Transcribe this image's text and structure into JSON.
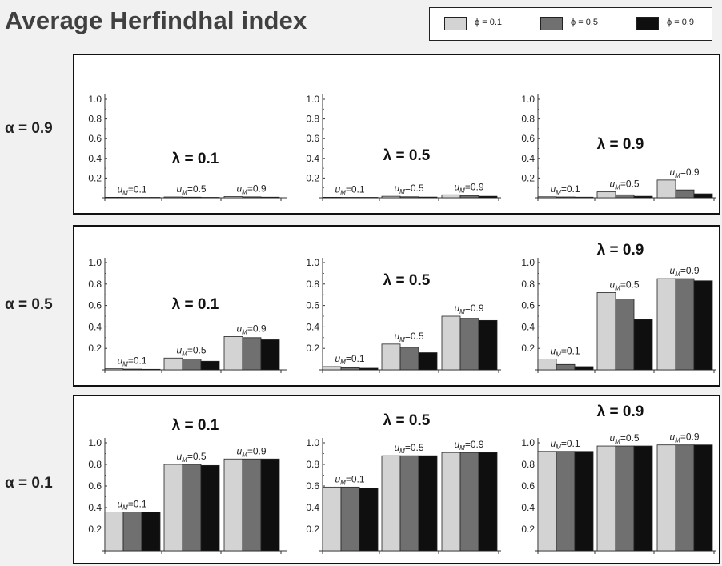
{
  "title": "Average Herfindhal index",
  "legend": [
    {
      "label": "ϕ = 0.1",
      "color": "#d3d3d3"
    },
    {
      "label": "ϕ = 0.5",
      "color": "#707070"
    },
    {
      "label": "ϕ = 0.9",
      "color": "#0f0f0f"
    }
  ],
  "colors": {
    "phi_0_1": "#d3d3d3",
    "phi_0_5": "#707070",
    "phi_0_9": "#0f0f0f",
    "background": "#f1f1f1",
    "panel": "#ffffff"
  },
  "chart_data": {
    "type": "bar",
    "title": "Average Herfindhal index",
    "series_names": [
      "ϕ = 0.1",
      "ϕ = 0.5",
      "ϕ = 0.9"
    ],
    "categories": [
      "u_M=0.1",
      "u_M=0.5",
      "u_M=0.9"
    ],
    "category_labels": [
      {
        "base": "u",
        "sub": "M",
        "value": "=0.1"
      },
      {
        "base": "u",
        "sub": "M",
        "value": "=0.5"
      },
      {
        "base": "u",
        "sub": "M",
        "value": "=0.9"
      }
    ],
    "yticks": [
      "0.2",
      "0.4",
      "0.6",
      "0.8",
      "1.0"
    ],
    "ylim": [
      0,
      1.0
    ],
    "grid": false,
    "legend_position": "top-right",
    "rows": [
      {
        "label": "α = 0.9",
        "panels": [
          {
            "label": "λ = 0.1",
            "values": [
              [
                0.005,
                0.003,
                0.002
              ],
              [
                0.008,
                0.006,
                0.004
              ],
              [
                0.012,
                0.009,
                0.006
              ]
            ]
          },
          {
            "label": "λ = 0.5",
            "values": [
              [
                0.005,
                0.004,
                0.003
              ],
              [
                0.015,
                0.01,
                0.007
              ],
              [
                0.03,
                0.02,
                0.015
              ]
            ]
          },
          {
            "label": "λ = 0.9",
            "values": [
              [
                0.01,
                0.008,
                0.006
              ],
              [
                0.06,
                0.03,
                0.015
              ],
              [
                0.18,
                0.08,
                0.04
              ]
            ]
          }
        ]
      },
      {
        "label": "α = 0.5",
        "panels": [
          {
            "label": "λ = 0.1",
            "values": [
              [
                0.01,
                0.007,
                0.005
              ],
              [
                0.11,
                0.1,
                0.08
              ],
              [
                0.31,
                0.3,
                0.28
              ]
            ]
          },
          {
            "label": "λ = 0.5",
            "values": [
              [
                0.03,
                0.02,
                0.015
              ],
              [
                0.24,
                0.21,
                0.16
              ],
              [
                0.5,
                0.48,
                0.46
              ]
            ]
          },
          {
            "label": "λ = 0.9",
            "values": [
              [
                0.1,
                0.05,
                0.03
              ],
              [
                0.72,
                0.66,
                0.47
              ],
              [
                0.85,
                0.85,
                0.83
              ]
            ]
          }
        ]
      },
      {
        "label": "α = 0.1",
        "panels": [
          {
            "label": "λ = 0.1",
            "values": [
              [
                0.36,
                0.36,
                0.36
              ],
              [
                0.8,
                0.8,
                0.79
              ],
              [
                0.85,
                0.85,
                0.85
              ]
            ]
          },
          {
            "label": "λ = 0.5",
            "values": [
              [
                0.59,
                0.59,
                0.58
              ],
              [
                0.88,
                0.88,
                0.88
              ],
              [
                0.91,
                0.91,
                0.91
              ]
            ]
          },
          {
            "label": "λ = 0.9",
            "values": [
              [
                0.92,
                0.92,
                0.92
              ],
              [
                0.97,
                0.97,
                0.97
              ],
              [
                0.98,
                0.98,
                0.98
              ]
            ]
          }
        ]
      }
    ]
  }
}
